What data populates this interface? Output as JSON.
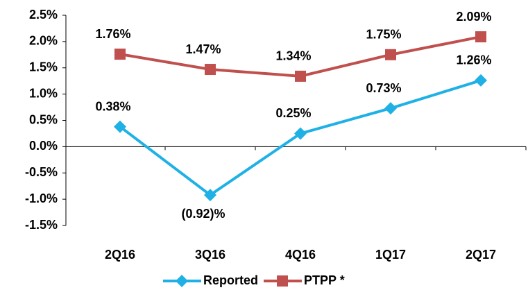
{
  "chart_data": {
    "type": "line",
    "categories": [
      "2Q16",
      "3Q16",
      "4Q16",
      "1Q17",
      "2Q17"
    ],
    "series": [
      {
        "name": "Reported",
        "color": "#1fb1e6",
        "marker": "diamond",
        "values": [
          0.38,
          -0.92,
          0.25,
          0.73,
          1.26
        ],
        "value_labels": [
          "0.38%",
          "(0.92)%",
          "0.25%",
          "0.73%",
          "1.26%"
        ]
      },
      {
        "name": "PTPP *",
        "color": "#c0504d",
        "marker": "square",
        "values": [
          1.76,
          1.47,
          1.34,
          1.75,
          2.09
        ],
        "value_labels": [
          "1.76%",
          "1.47%",
          "1.34%",
          "1.75%",
          "2.09%"
        ]
      }
    ],
    "ylim": [
      -1.5,
      2.5
    ],
    "yticks": [
      {
        "value": -1.5,
        "label": "-1.5%"
      },
      {
        "value": -1.0,
        "label": "-1.0%"
      },
      {
        "value": -0.5,
        "label": "-0.5%"
      },
      {
        "value": 0.0,
        "label": "0.0%"
      },
      {
        "value": 0.5,
        "label": "0.5%"
      },
      {
        "value": 1.0,
        "label": "1.0%"
      },
      {
        "value": 1.5,
        "label": "1.5%"
      },
      {
        "value": 2.0,
        "label": "2.0%"
      },
      {
        "value": 2.5,
        "label": "2.5%"
      }
    ],
    "grid": false,
    "legend": "bottom"
  }
}
